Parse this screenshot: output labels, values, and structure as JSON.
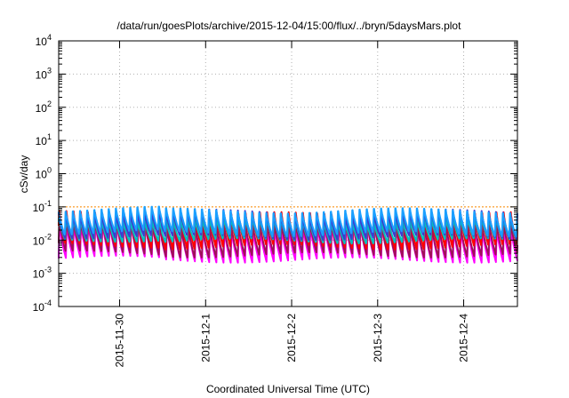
{
  "chart_data": {
    "type": "line",
    "title": "/data/run/goesPlots/archive/2015-12-04/15:00/flux/../bryn/5daysMars.plot",
    "xlabel": "Coordinated Universal Time (UTC)",
    "ylabel": "cSv/day",
    "y_scale": "log",
    "ylim": [
      0.0001,
      10000
    ],
    "y_ticks": [
      {
        "value": 0.0001,
        "base": "10",
        "exp": "-4"
      },
      {
        "value": 0.001,
        "base": "10",
        "exp": "-3"
      },
      {
        "value": 0.01,
        "base": "10",
        "exp": "-2"
      },
      {
        "value": 0.1,
        "base": "10",
        "exp": "-1"
      },
      {
        "value": 1,
        "base": "10",
        "exp": "0"
      },
      {
        "value": 10,
        "base": "10",
        "exp": "1"
      },
      {
        "value": 100,
        "base": "10",
        "exp": "2"
      },
      {
        "value": 1000,
        "base": "10",
        "exp": "3"
      },
      {
        "value": 10000,
        "base": "10",
        "exp": "4"
      }
    ],
    "x_range": [
      "2015-11-29T07:00",
      "2015-12-04T15:00"
    ],
    "x_ticks": [
      "2015-11-30",
      "2015-12-1",
      "2015-12-2",
      "2015-12-3",
      "2015-12-4"
    ],
    "grid": true,
    "pattern": {
      "cycles_per_day": 12,
      "description": "sawtooth: sharp rise then decay each orbit cycle"
    },
    "series": [
      {
        "color": "#ff00ff",
        "peak": 0.028,
        "trough": 0.0025
      },
      {
        "color": "#a0105a",
        "peak": 0.035,
        "trough": 0.0035
      },
      {
        "color": "#ff0000",
        "peak": 0.07,
        "trough": 0.006
      },
      {
        "color": "#00c0c0",
        "peak": 0.045,
        "trough": 0.009
      },
      {
        "color": "#3b3bd0",
        "peak": 0.07,
        "trough": 0.012
      },
      {
        "color": "#1aa0ff",
        "peak": 0.09,
        "trough": 0.015
      }
    ],
    "threshold": {
      "value": 0.1,
      "color": "#ff8c00"
    }
  }
}
